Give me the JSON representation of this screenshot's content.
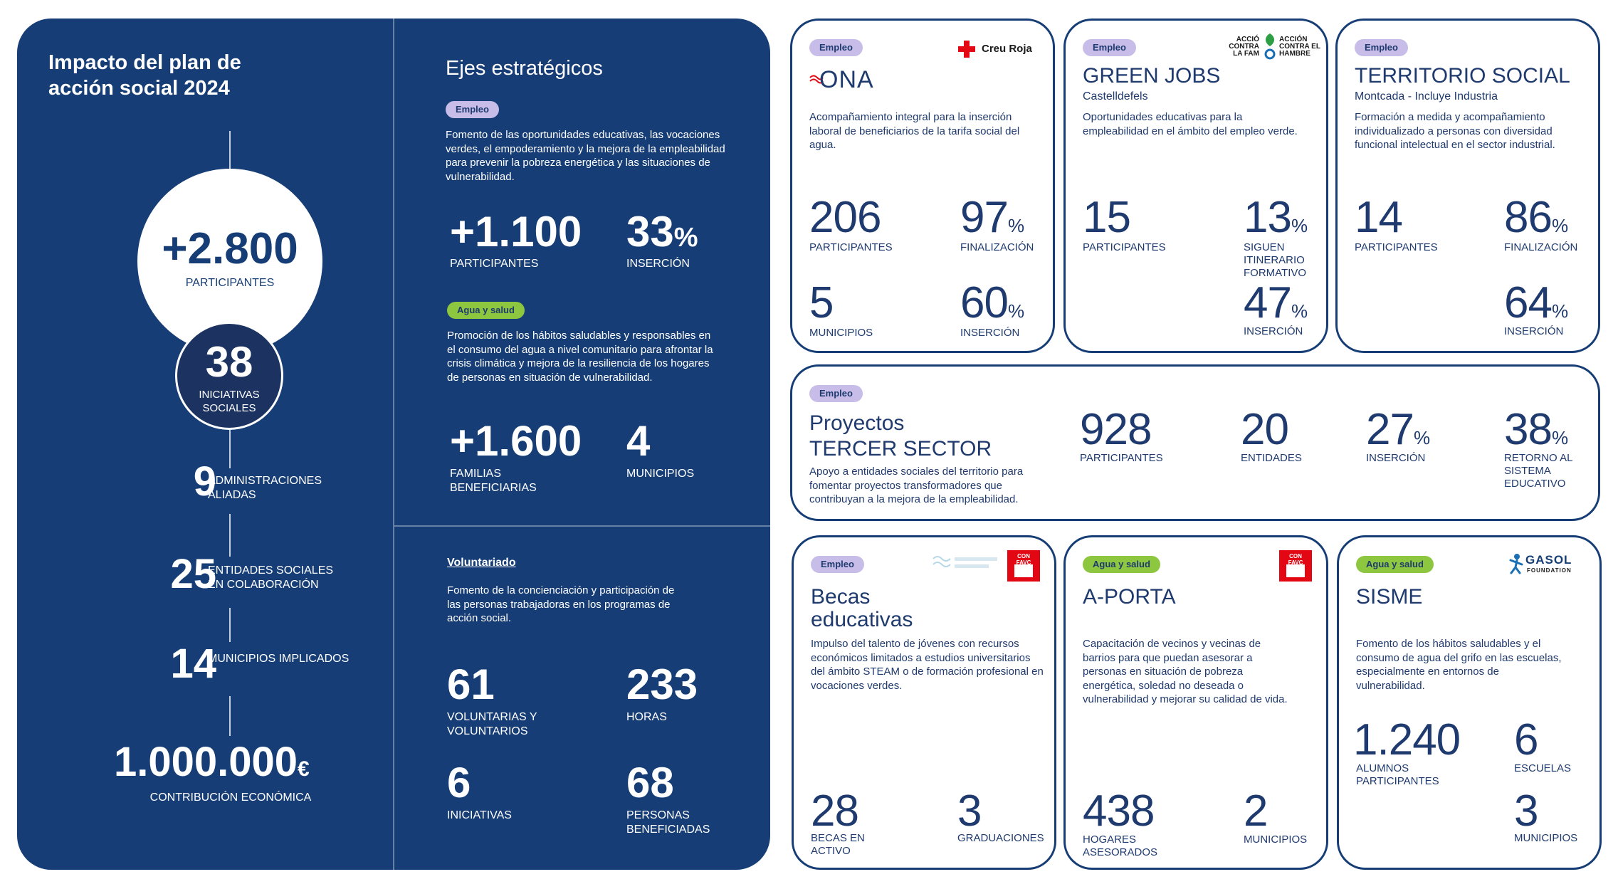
{
  "colors": {
    "navy": "#163d75",
    "empleo_tag": "#c7bde8",
    "agua_tag": "#8dc63f",
    "red": "#e30613",
    "green": "#2e9e45"
  },
  "impact": {
    "title": "Impacto del plan de acción social 2024",
    "participants": {
      "value": "+2.800",
      "label": "PARTICIPANTES"
    },
    "initiatives": {
      "value": "38",
      "label": "INICIATIVAS SOCIALES"
    },
    "stats": [
      {
        "value": "9",
        "label": "ADMINISTRACIONES ALIADAS"
      },
      {
        "value": "25",
        "label": "ENTIDADES SOCIALES EN COLABORACIÓN"
      },
      {
        "value": "14",
        "label": "MUNICIPIOS IMPLICADOS"
      }
    ],
    "contribution": {
      "value": "1.000.000",
      "unit": "€",
      "label": "CONTRIBUCIÓN ECONÓMICA"
    }
  },
  "ejes": {
    "title": "Ejes estratégicos",
    "empleo": {
      "tag": "Empleo",
      "desc": "Fomento de las oportunidades educativas, las vocaciones verdes, el empoderamiento y la mejora de la empleabilidad para prevenir la pobreza energética y las situaciones de vulnerabilidad.",
      "stat1": {
        "value": "+1.100",
        "label": "PARTICIPANTES"
      },
      "stat2": {
        "value": "33",
        "unit": "%",
        "label": "INSERCIÓN"
      }
    },
    "agua": {
      "tag": "Agua y salud",
      "desc": "Promoción de los hábitos saludables y responsables en el consumo del agua a nivel comunitario para afrontar la crisis climática y mejora de la resiliencia de los hogares de personas en situación de vulnerabilidad.",
      "stat1": {
        "value": "+1.600",
        "label": "FAMILIAS BENEFICIARIAS"
      },
      "stat2": {
        "value": "4",
        "label": "MUNICIPIOS"
      }
    }
  },
  "voluntariado": {
    "title": "Voluntariado",
    "desc": "Fomento de la concienciación y participación de las personas trabajadoras en los programas de acción social.",
    "stats": [
      {
        "value": "61",
        "label": "VOLUNTARIAS Y VOLUNTARIOS"
      },
      {
        "value": "233",
        "label": "HORAS"
      },
      {
        "value": "6",
        "label": "INICIATIVAS"
      },
      {
        "value": "68",
        "label": "PERSONAS BENEFICIADAS"
      }
    ]
  },
  "cards": {
    "ona": {
      "tag": "Empleo",
      "brand": "ONA",
      "partner": "Creu Roja",
      "desc": "Acompañamiento integral para la inserción laboral de beneficiarios de la tarifa social del agua.",
      "s1": {
        "value": "206",
        "label": "PARTICIPANTES"
      },
      "s2": {
        "value": "97",
        "unit": "%",
        "label": "FINALIZACIÓN"
      },
      "s3": {
        "value": "5",
        "label": "MUNICIPIOS"
      },
      "s4": {
        "value": "60",
        "unit": "%",
        "label": "INSERCIÓN"
      }
    },
    "green": {
      "tag": "Empleo",
      "title": "GREEN JOBS",
      "subtitle": "Castelldefels",
      "partner_left": "ACCIÓ CONTRA LA FAM",
      "partner_right": "ACCIÓN CONTRA EL HAMBRE",
      "desc": "Oportunidades educativas para la empleabilidad en el ámbito del empleo verde.",
      "s1": {
        "value": "15",
        "label": "PARTICIPANTES"
      },
      "s2": {
        "value": "13",
        "unit": "%",
        "label": "SIGUEN ITINERARIO FORMATIVO"
      },
      "s3": {
        "value": "47",
        "unit": "%",
        "label": "INSERCIÓN"
      }
    },
    "territorio": {
      "tag": "Empleo",
      "title": "TERRITORIO SOCIAL",
      "subtitle": "Montcada - Incluye Industria",
      "desc": "Formación a medida y acompañamiento individualizado a personas con diversidad funcional intelectual en el sector industrial.",
      "s1": {
        "value": "14",
        "label": "PARTICIPANTES"
      },
      "s2": {
        "value": "86",
        "unit": "%",
        "label": "FINALIZACIÓN"
      },
      "s3": {
        "value": "64",
        "unit": "%",
        "label": "INSERCIÓN"
      }
    },
    "tercer": {
      "tag": "Empleo",
      "title_line1": "Proyectos",
      "title_line2": "TERCER SECTOR",
      "desc": "Apoyo a entidades sociales del territorio para fomentar proyectos transformadores que contribuyan a la mejora de la empleabilidad.",
      "s1": {
        "value": "928",
        "label": "PARTICIPANTES"
      },
      "s2": {
        "value": "20",
        "label": "ENTIDADES"
      },
      "s3": {
        "value": "27",
        "unit": "%",
        "label": "INSERCIÓN"
      },
      "s4": {
        "value": "38",
        "unit": "%",
        "label": "RETORNO AL SISTEMA EDUCATIVO"
      }
    },
    "becas": {
      "tag": "Empleo",
      "title_line1": "Becas",
      "title_line2": "educativas",
      "partner_badge": "CON FAVC",
      "desc": "Impulso del talento de jóvenes con recursos económicos limitados a estudios universitarios del ámbito STEAM o de formación profesional en vocaciones verdes.",
      "s1": {
        "value": "28",
        "label": "BECAS EN ACTIVO"
      },
      "s2": {
        "value": "3",
        "label": "GRADUACIONES"
      }
    },
    "aporta": {
      "tag": "Agua y salud",
      "title": "A-PORTA",
      "partner_badge": "CON FAVC",
      "desc": "Capacitación de vecinos y vecinas de barrios para que puedan asesorar a personas en situación de pobreza energética, soledad no deseada o vulnerabilidad y mejorar su calidad de vida.",
      "s1": {
        "value": "438",
        "label": "HOGARES ASESORADOS"
      },
      "s2": {
        "value": "2",
        "label": "MUNICIPIOS"
      }
    },
    "sisme": {
      "tag": "Agua y salud",
      "title": "SISME",
      "partner_name": "GASOL",
      "partner_sub": "FOUNDATION",
      "desc": "Fomento de los hábitos saludables y el consumo de agua del grifo en las escuelas, especialmente en entornos de vulnerabilidad.",
      "s1": {
        "value": "1.240",
        "label": "ALUMNOS PARTICIPANTES"
      },
      "s2": {
        "value": "6",
        "label": "ESCUELAS"
      },
      "s3": {
        "value": "3",
        "label": "MUNICIPIOS"
      }
    }
  }
}
